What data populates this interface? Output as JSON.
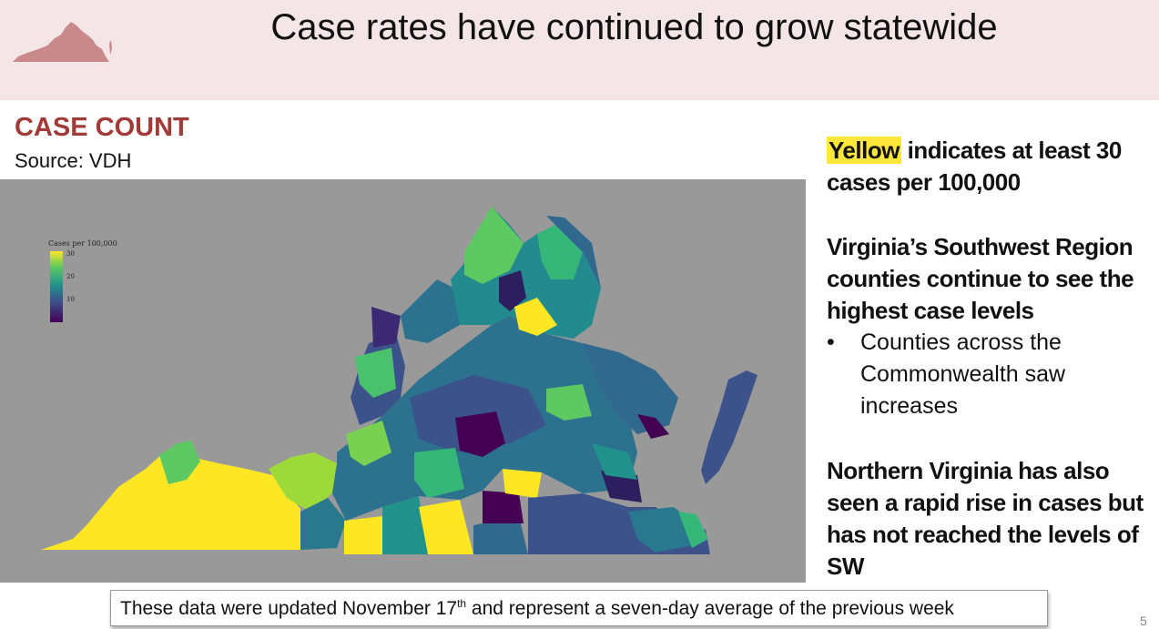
{
  "header": {
    "title": "Case rates have continued to grow statewide",
    "colors": {
      "band": "#f4e6e7",
      "logo": "#c9888a"
    }
  },
  "section": {
    "title": "CASE COUNT",
    "source": "Source: VDH",
    "title_color": "#a23b37"
  },
  "map": {
    "legend": {
      "title": "Cases per 100,000",
      "ticks": [
        "30",
        "20",
        "10"
      ]
    },
    "scale_colors": [
      "#fde725",
      "#5ec962",
      "#21918c",
      "#3b528b",
      "#440154"
    ],
    "background": "#999999"
  },
  "right_panel": {
    "highlight_word": "Yellow",
    "highlight_rest": " indicates at least 30 cases per 100,000",
    "southwest": "Virginia’s Southwest Region counties continue to see the highest case levels",
    "bullet": "Counties across the Commonwealth saw increases",
    "northern": "Northern Virginia has also seen a rapid rise in cases but has not reached the levels of SW"
  },
  "footer": {
    "note_before": "These data were updated November 17",
    "note_sup": "th",
    "note_after": " and represent a seven-day average of the previous week",
    "page_number": "5"
  }
}
